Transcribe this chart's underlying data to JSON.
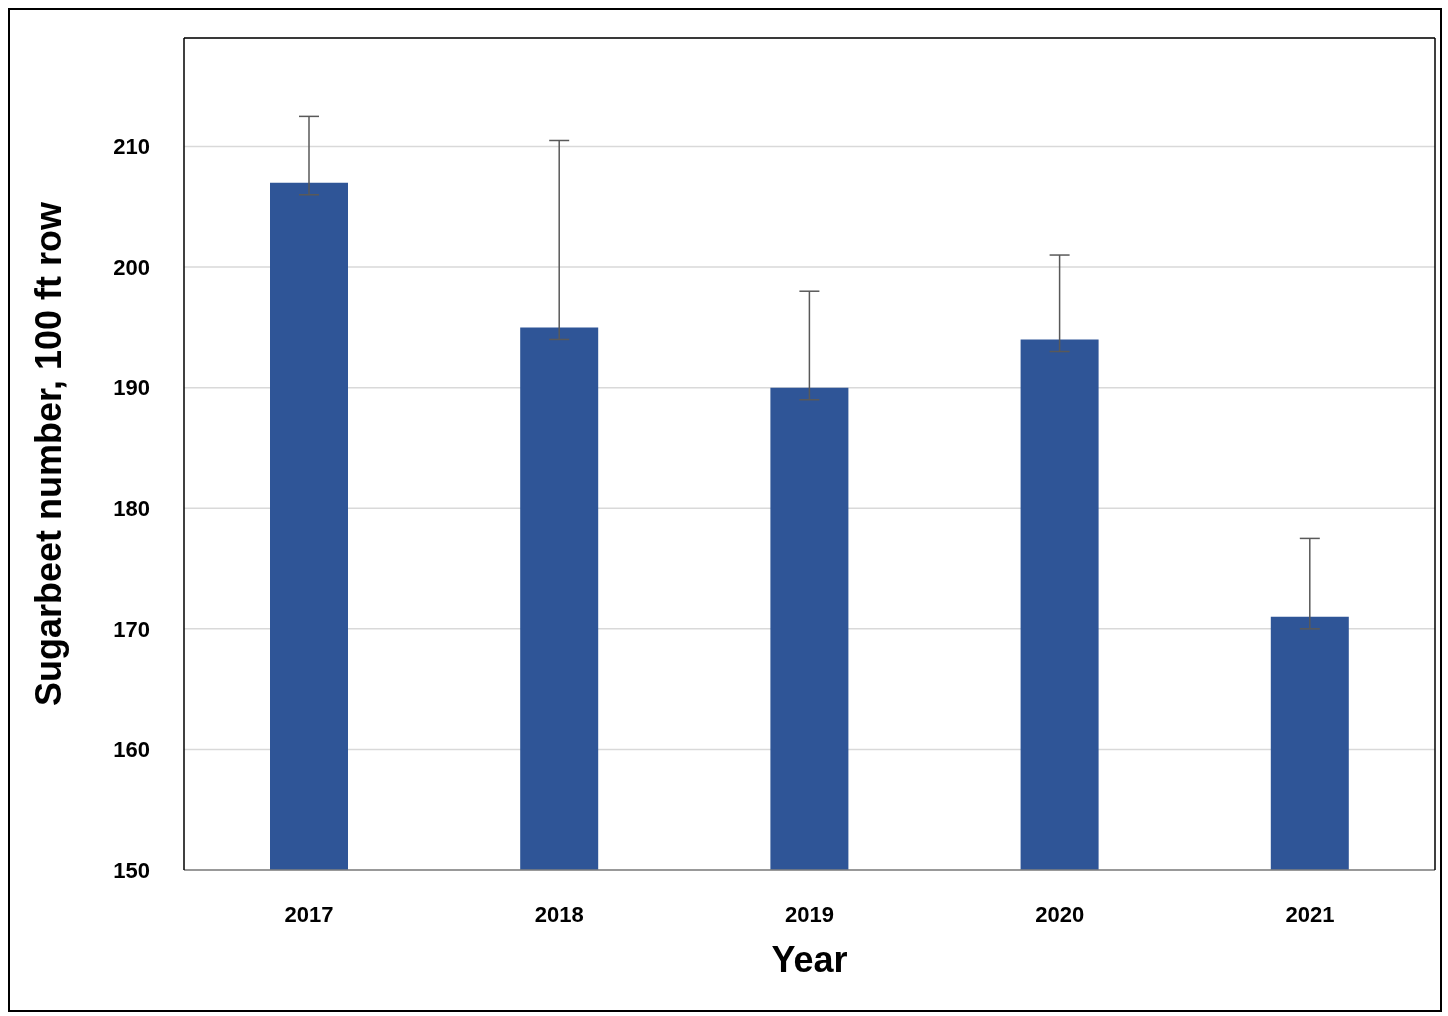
{
  "chart_data": {
    "type": "bar",
    "xlabel": "Year",
    "ylabel": "Sugarbeet number, 100 ft row",
    "categories": [
      "2017",
      "2018",
      "2019",
      "2020",
      "2021"
    ],
    "values": [
      207,
      195,
      190,
      194,
      171
    ],
    "errors": [
      [
        206,
        212.5
      ],
      [
        194,
        210.5
      ],
      [
        189,
        198
      ],
      [
        193,
        201
      ],
      [
        170,
        177.5
      ]
    ],
    "color": "#2f5597",
    "ylim": [
      150,
      219
    ],
    "yticks": [
      150,
      160,
      170,
      180,
      190,
      200,
      210
    ],
    "grid": "y",
    "legend": false
  }
}
